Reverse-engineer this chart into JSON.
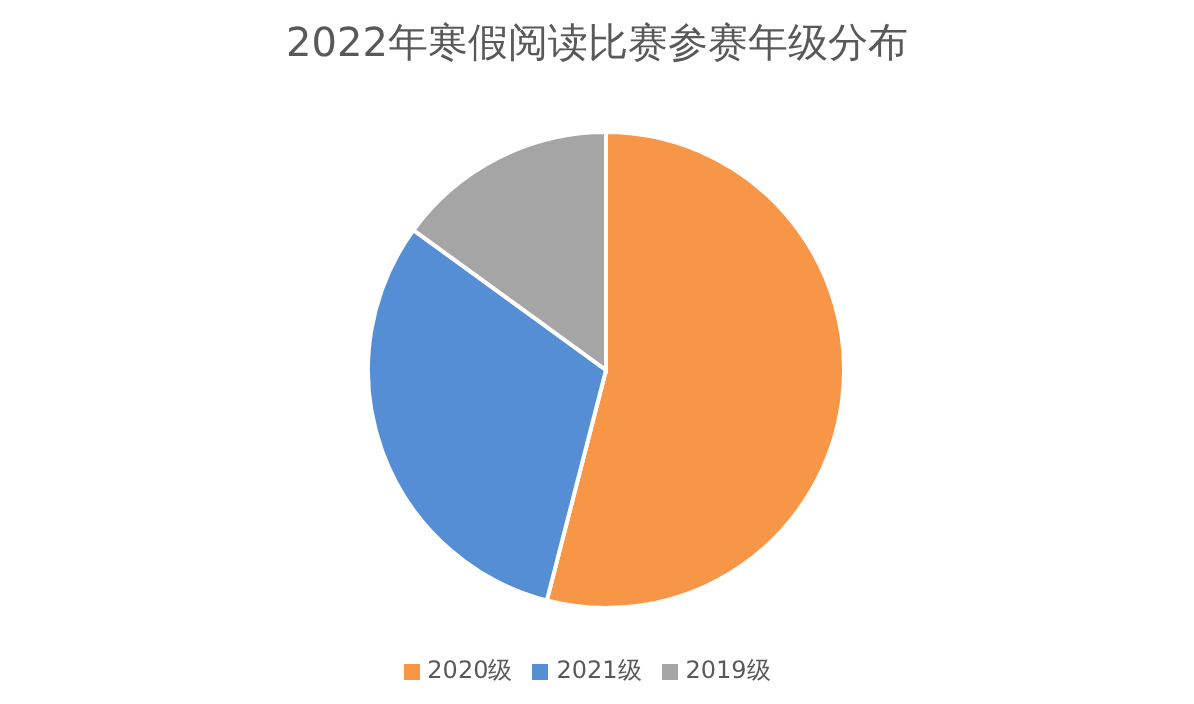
{
  "chart_data": {
    "type": "pie",
    "title": "2022年寒假阅读比赛参赛年级分布",
    "categories": [
      "2020级",
      "2021级",
      "2019级"
    ],
    "values": [
      54,
      31,
      15
    ],
    "colors": [
      "#f79646",
      "#558ed5",
      "#a5a5a5"
    ],
    "legend": "bottom"
  }
}
